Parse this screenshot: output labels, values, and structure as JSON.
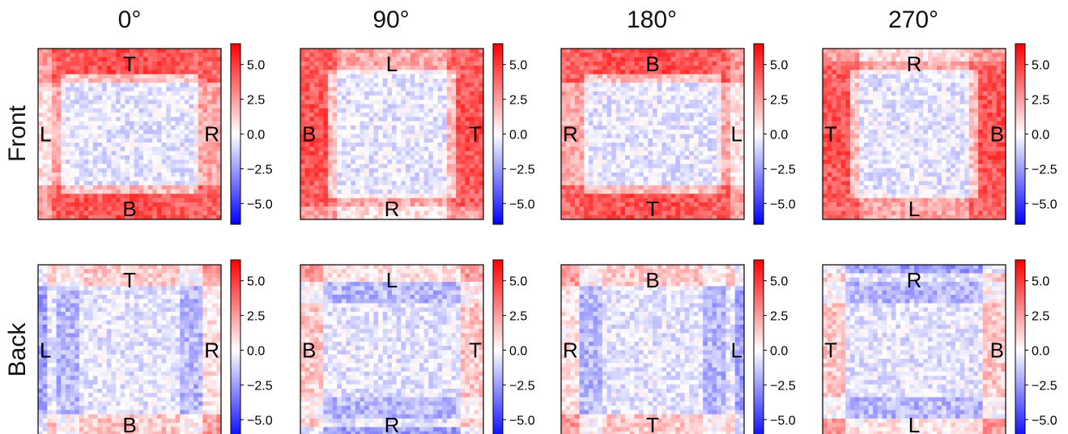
{
  "figure": {
    "column_titles": [
      "0°",
      "90°",
      "180°",
      "270°"
    ],
    "row_titles": [
      "Front",
      "Back"
    ]
  },
  "chart_data": {
    "type": "heatmap",
    "colormap": "bwr",
    "colorbar": {
      "range": [
        -6.5,
        6.5
      ],
      "ticks": [
        "5.0",
        "2.5",
        "0.0",
        "−2.5",
        "−5.0"
      ],
      "tick_values": [
        5.0,
        2.5,
        0.0,
        -2.5,
        -5.0
      ]
    },
    "panels": [
      {
        "row": "Front",
        "col": "0°",
        "labels": {
          "top": "T",
          "bottom": "B",
          "left": "L",
          "right": "R"
        }
      },
      {
        "row": "Front",
        "col": "90°",
        "labels": {
          "top": "L",
          "bottom": "R",
          "left": "B",
          "right": "T"
        }
      },
      {
        "row": "Front",
        "col": "180°",
        "labels": {
          "top": "B",
          "bottom": "T",
          "left": "R",
          "right": "L"
        }
      },
      {
        "row": "Front",
        "col": "270°",
        "labels": {
          "top": "R",
          "bottom": "L",
          "left": "T",
          "right": "B"
        }
      },
      {
        "row": "Back",
        "col": "0°",
        "labels": {
          "top": "T",
          "bottom": "B",
          "left": "L",
          "right": "R"
        }
      },
      {
        "row": "Back",
        "col": "90°",
        "labels": {
          "top": "L",
          "bottom": "R",
          "left": "B",
          "right": "T"
        }
      },
      {
        "row": "Back",
        "col": "180°",
        "labels": {
          "top": "B",
          "bottom": "T",
          "left": "R",
          "right": "L"
        }
      },
      {
        "row": "Back",
        "col": "270°",
        "labels": {
          "top": "R",
          "bottom": "L",
          "left": "T",
          "right": "B"
        }
      }
    ]
  }
}
